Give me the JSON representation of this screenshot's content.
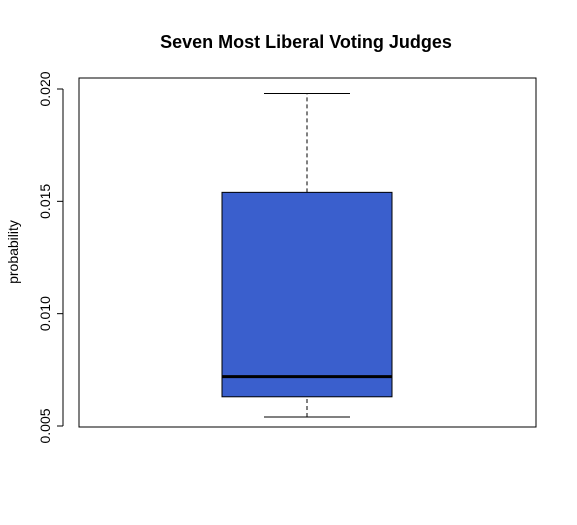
{
  "chart_data": {
    "type": "boxplot",
    "title": "Seven Most Liberal Voting Judges",
    "xlabel": "",
    "ylabel": "probability",
    "ylim": [
      0.005,
      0.02
    ],
    "yticks": [
      0.005,
      0.01,
      0.015,
      0.02
    ],
    "ytick_labels": [
      "0.005",
      "0.010",
      "0.015",
      "0.020"
    ],
    "grid": false,
    "box": {
      "min": 0.0054,
      "q1": 0.0063,
      "median": 0.0072,
      "q3": 0.0154,
      "max": 0.0198
    },
    "box_color": "#3A5FCD",
    "median_color": "#000000"
  }
}
